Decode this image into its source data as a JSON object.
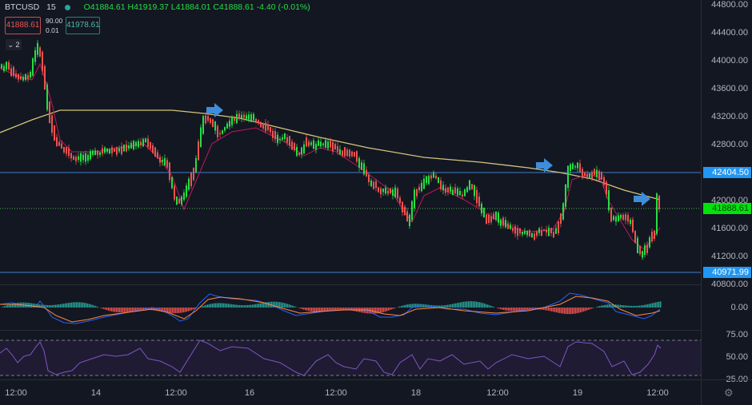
{
  "header": {
    "symbol": "BTCUSD",
    "interval": "15",
    "ohlc": "O41884.61 H41919.37 L41884.01 C41888.61 -4.40 (-0.01%)",
    "open": "41884.61",
    "high": "41919.37",
    "low": "41884.01",
    "close": "41888.61",
    "change": "-4.40 (-0.01%)"
  },
  "trade": {
    "sell_price": "41888.61",
    "buy_price": "41978.61",
    "spread_top": "90.00",
    "spread_bottom": "0.01"
  },
  "indicators_toggle": {
    "label": "2",
    "icon": "chevron-down-icon"
  },
  "price_axis": {
    "labels": [
      "44800.00",
      "44400.00",
      "44000.00",
      "43600.00",
      "43200.00",
      "42800.00",
      "42000.00",
      "41600.00",
      "41200.00",
      "40800.00"
    ],
    "horizontal_lines": [
      {
        "label": "42404.50",
        "color": "#2196f3"
      },
      {
        "label": "40971.99",
        "color": "#2196f3"
      }
    ],
    "current_price": {
      "label": "41888.61",
      "color": "#00e40c"
    }
  },
  "macd_axis": {
    "labels": [
      "0.00"
    ]
  },
  "rsi_axis": {
    "labels": [
      "75.00",
      "50.00",
      "25.00"
    ]
  },
  "time_axis": {
    "labels": [
      "12:00",
      "14",
      "12:00",
      "16",
      "12:00",
      "18",
      "12:00",
      "19",
      "12:00"
    ]
  },
  "colors": {
    "background": "#131722",
    "bull": "#26de44",
    "bear": "#ef5350",
    "ma_fast": "#c2185b",
    "ma_slow": "#d4c47a",
    "annotation_arrow": "#3d8ddb",
    "rsi_line": "#7e57c2",
    "macd_line": "#2962ff",
    "signal_line": "#ff8a3d"
  },
  "settings_icon": "gear-icon"
}
